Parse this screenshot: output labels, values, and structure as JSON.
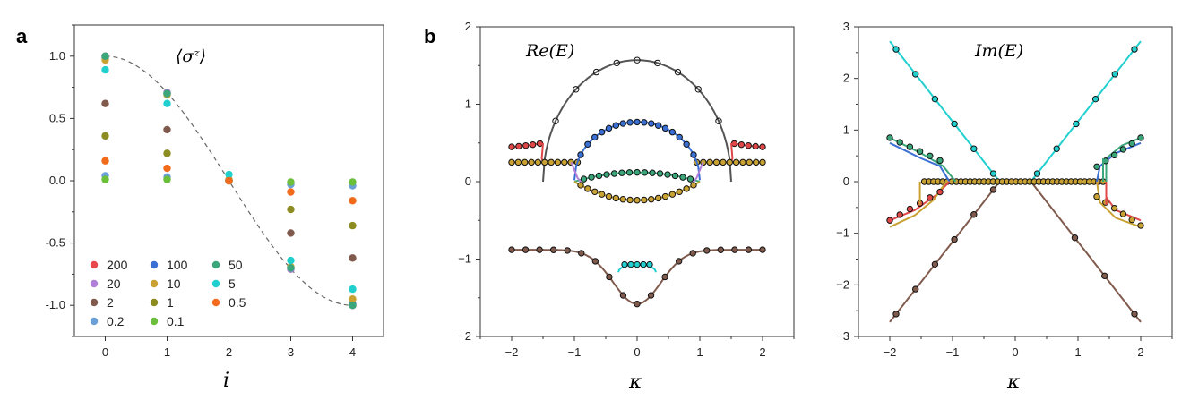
{
  "figure": {
    "panel_a_letter": "a",
    "panel_b_letter": "b"
  },
  "chart_data": [
    {
      "type": "scatter",
      "panel": "a",
      "title": "⟨σᶻ⟩",
      "xlabel": "i",
      "ylabel": "",
      "xlim": [
        -0.5,
        4.5
      ],
      "ylim": [
        -1.25,
        1.25
      ],
      "xticks": [
        0,
        1,
        2,
        3,
        4
      ],
      "yticks": [
        1.0,
        0.5,
        0.0,
        -0.5,
        -1.0
      ],
      "ytick_labels": [
        "1.0",
        "0.5",
        "0.0",
        "-0.5",
        "-1.0"
      ],
      "grid": false,
      "legend_placement": "bottom-left",
      "reference_curve": {
        "style": "dashed",
        "color": "#666666",
        "description": "cos(pi*i/4)"
      },
      "series": [
        {
          "name": "200",
          "color": "#e8474c",
          "values": [
            1.0,
            0.7,
            0.0,
            -0.7,
            -1.0
          ]
        },
        {
          "name": "20",
          "color": "#b07fd8",
          "values": [
            1.0,
            0.71,
            0.0,
            -0.71,
            -1.0
          ]
        },
        {
          "name": "2",
          "color": "#7f5a4d",
          "values": [
            0.62,
            0.41,
            0.0,
            -0.42,
            -0.62
          ]
        },
        {
          "name": "0.2",
          "color": "#6aa0d6",
          "values": [
            0.04,
            0.03,
            0.0,
            -0.03,
            -0.04
          ]
        },
        {
          "name": "100",
          "color": "#3a6fd4",
          "values": [
            0.99,
            0.7,
            0.0,
            -0.7,
            -0.99
          ]
        },
        {
          "name": "10",
          "color": "#c9a233",
          "values": [
            0.97,
            0.69,
            0.01,
            -0.69,
            -0.95
          ]
        },
        {
          "name": "1",
          "color": "#8c8c20",
          "values": [
            0.36,
            0.22,
            0.0,
            -0.23,
            -0.36
          ]
        },
        {
          "name": "0.1",
          "color": "#6bbf3a",
          "values": [
            0.01,
            0.01,
            0.0,
            -0.01,
            -0.01
          ]
        },
        {
          "name": "50",
          "color": "#3aa67a",
          "values": [
            1.0,
            0.7,
            0.0,
            -0.7,
            -1.0
          ]
        },
        {
          "name": "5",
          "color": "#21cfcf",
          "values": [
            0.89,
            0.62,
            0.05,
            -0.64,
            -0.87
          ]
        },
        {
          "name": "0.5",
          "color": "#f26b1d",
          "values": [
            0.16,
            0.1,
            0.0,
            -0.09,
            -0.16
          ]
        }
      ]
    },
    {
      "type": "line",
      "panel": "b-left",
      "title": "Re(E)",
      "xlabel": "κ",
      "ylabel": "",
      "xlim": [
        -2.5,
        2.5
      ],
      "ylim": [
        -2,
        2
      ],
      "xticks": [
        -2,
        -1,
        0,
        1,
        2
      ],
      "yticks": [
        2,
        1,
        0,
        -1,
        -2
      ],
      "ytick_labels": [
        "2",
        "1",
        "0",
        "−1",
        "−2"
      ],
      "xtick_labels": [
        "−2",
        "−1",
        "0",
        "1",
        "2"
      ],
      "grid": false
    },
    {
      "type": "line",
      "panel": "b-right",
      "title": "Im(E)",
      "xlabel": "κ",
      "ylabel": "",
      "xlim": [
        -2.5,
        2.5
      ],
      "ylim": [
        -3,
        3
      ],
      "xticks": [
        -2,
        -1,
        0,
        1,
        2
      ],
      "yticks": [
        3,
        2,
        1,
        0,
        -1,
        -2,
        -3
      ],
      "ytick_labels": [
        "3",
        "2",
        "1",
        "0",
        "−1",
        "−2",
        "−3"
      ],
      "xtick_labels": [
        "−2",
        "−1",
        "0",
        "1",
        "2"
      ],
      "grid": false
    }
  ]
}
